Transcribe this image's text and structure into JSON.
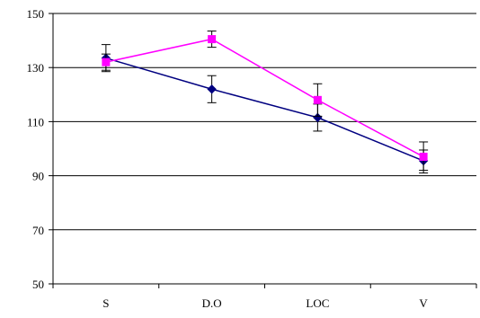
{
  "chart_data": {
    "type": "line",
    "categories": [
      "S",
      "D.O",
      "LOC",
      "V"
    ],
    "ylim": [
      50,
      150
    ],
    "yticks": [
      50,
      70,
      90,
      110,
      130,
      150
    ],
    "grid": true,
    "title": "",
    "xlabel": "",
    "ylabel": "",
    "series": [
      {
        "values": [
          133.5,
          122,
          111.5,
          95.5
        ],
        "error_low": [
          128.5,
          117,
          106.5,
          91
        ],
        "error_high": [
          138.5,
          127,
          116.5,
          99.5
        ],
        "color": "#000080",
        "marker": "diamond"
      },
      {
        "values": [
          132,
          140.5,
          118,
          97
        ],
        "error_low": [
          129,
          137.5,
          112,
          92
        ],
        "error_high": [
          135,
          143.5,
          124,
          102.5
        ],
        "color": "#ff00ff",
        "marker": "square"
      }
    ]
  }
}
